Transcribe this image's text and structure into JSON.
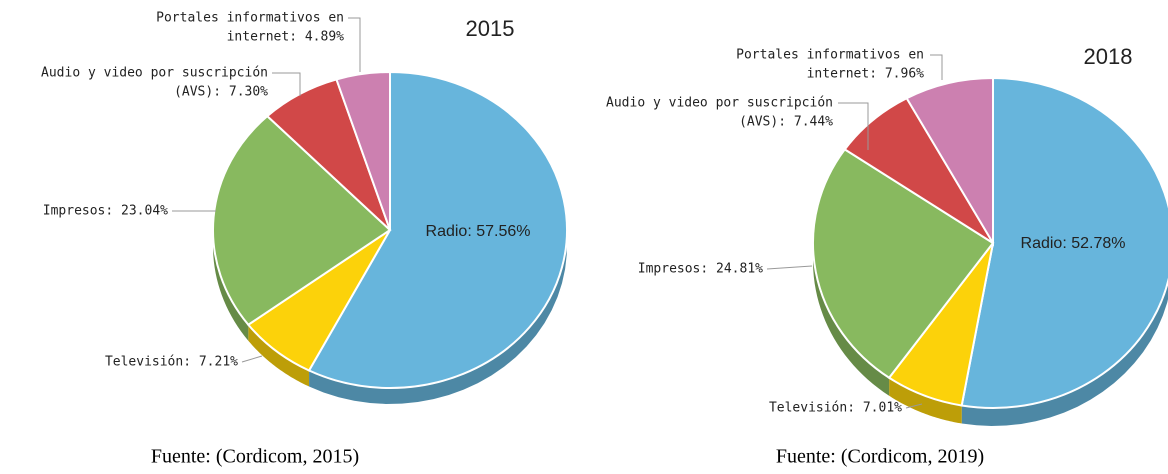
{
  "chart_data": [
    {
      "type": "pie",
      "title": "2015",
      "values": [
        57.56,
        7.21,
        23.04,
        7.3,
        4.89
      ],
      "value_labels": [
        [
          "Radio: 57.56%"
        ],
        [
          "Televisión: 7.21%"
        ],
        [
          "Impresos: 23.04%"
        ],
        [
          "Audio y video por suscripción",
          "(AVS): 7.30%"
        ],
        [
          "Portales informativos en",
          "internet: 4.89%"
        ]
      ],
      "colors": [
        "#67b5dc",
        "#fcd20a",
        "#88b95f",
        "#d14848",
        "#cc80b0"
      ],
      "source": "Fuente: (Cordicom, 2015)"
    },
    {
      "type": "pie",
      "title": "2018",
      "values": [
        52.78,
        7.01,
        24.81,
        7.44,
        7.96
      ],
      "value_labels": [
        [
          "Radio: 52.78%"
        ],
        [
          "Televisión: 7.01%"
        ],
        [
          "Impresos: 24.81%"
        ],
        [
          "Audio y video por suscripción",
          "(AVS): 7.44%"
        ],
        [
          "Portales informativos en",
          "internet: 7.96%"
        ]
      ],
      "colors": [
        "#67b5dc",
        "#fcd20a",
        "#88b95f",
        "#d14848",
        "#cc80b0"
      ],
      "source": "Fuente: (Cordicom, 2019)"
    }
  ]
}
